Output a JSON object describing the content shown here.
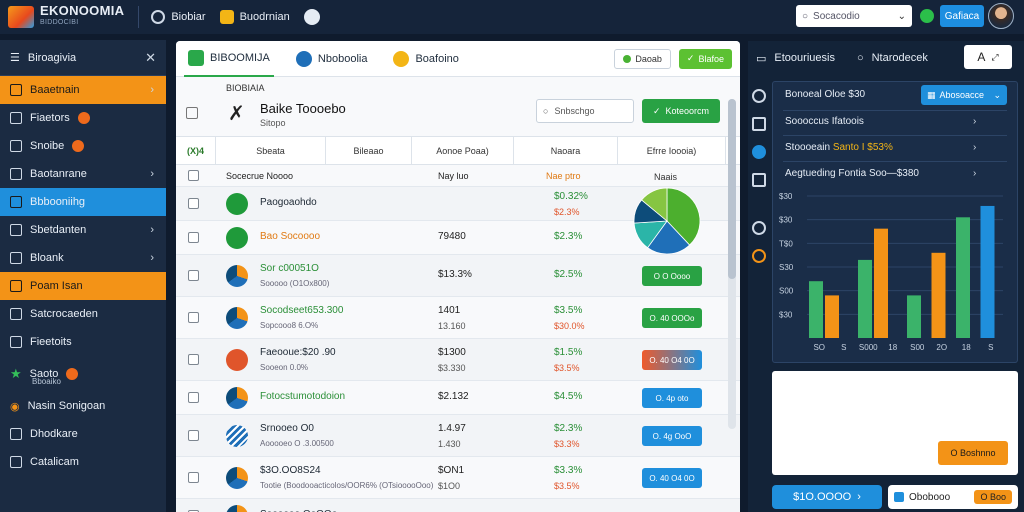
{
  "topbar": {
    "brand": "EKONOOMIA",
    "brand_sub": "BIDDOCIBI",
    "links": [
      {
        "label": "Biobiar",
        "icon": "clock-icon"
      },
      {
        "label": "Buodrnian",
        "icon": "folder-icon"
      }
    ],
    "search_placeholder": "Socacodio",
    "button_label": "Gafiaca"
  },
  "sidebar": {
    "title": "Biroagivia",
    "items": [
      {
        "label": "Baaetnain",
        "icon": "folder-icon",
        "state": "active-orange",
        "arrow": true
      },
      {
        "label": "Fiaetors",
        "icon": "calendar-icon",
        "badge": true
      },
      {
        "label": "Snoibe",
        "icon": "clipboard-icon",
        "badge": true
      },
      {
        "label": "Baotanrane",
        "icon": "document-icon",
        "arrow": true
      },
      {
        "label": "Bbbooniihg",
        "icon": "grid-icon",
        "state": "active-blue"
      },
      {
        "label": "Sbetdanten",
        "icon": "list-icon",
        "arrow": true
      },
      {
        "label": "Bloank",
        "icon": "rocket-icon",
        "arrow": true
      },
      {
        "label": "Poam Isan",
        "icon": "folder-icon",
        "state": "active-orange"
      },
      {
        "label": "Satcrocaeden",
        "icon": "square-icon"
      },
      {
        "label": "Fieetoits",
        "icon": "chart-icon"
      },
      {
        "label": "Saoto",
        "sub": "Bboaiko",
        "icon": "star-icon",
        "badge": true
      },
      {
        "label": "Nasin Sonigoan",
        "icon": "flame-icon"
      },
      {
        "label": "Dhodkare",
        "icon": "globe-icon"
      },
      {
        "label": "Catalicam",
        "icon": "gear-icon"
      }
    ]
  },
  "main": {
    "tabs": [
      {
        "label": "BIBOOMIJA"
      },
      {
        "label": "Nboboolia"
      },
      {
        "label": "Boafoino"
      }
    ],
    "btn_outline": "Daoab",
    "btn_green": "Blafoe",
    "info": {
      "label": "BIOBIAIA",
      "title": "Baike Toooebo",
      "sub": "Sitopo",
      "search_placeholder": "Snbschgo",
      "button": "Koteoorcm"
    },
    "headers": [
      "(X)4",
      "Sbeata",
      "Bileaao",
      "Aonoe Poaa)",
      "Naoara",
      "Efrre Ioooia)"
    ],
    "subheader": {
      "name": "Socecrue Noooo",
      "v1": "Nay luo",
      "v2": "Nae ptro",
      "pie": "Naais"
    },
    "rows": [
      {
        "name": "Paogoaohdo",
        "v1": "",
        "v2": "$0.32%",
        "v2b": "$2.3%"
      },
      {
        "name": "Bao Socoooo",
        "v1": "79480",
        "v2": "$2.3%"
      },
      {
        "name": "Sor c00051O",
        "sub": "Sooooo (O1Ox800)",
        "v1": "$13.3%",
        "v2": "$2.5%",
        "pill": "O O Oooo"
      },
      {
        "name": "Socodseet653.300",
        "sub": "Sopcooo8 6.O%",
        "v1": "1401",
        "v1b": "13.160",
        "v2": "$3.5%",
        "v2b": "$30.0%",
        "pill": "O. 40 OOOo"
      },
      {
        "name": "Faeooue:$20 .90",
        "sub": "Sooeon 0.0%",
        "v1": "$1300",
        "v1b": "$3.330",
        "v2": "$1.5%",
        "v2b": "$3.5%",
        "pill": "O. 40 O4 0O"
      },
      {
        "name": "Fotocstumotodoion",
        "v1": "$2.132",
        "v2": "$4.5%",
        "pill": "O. 4p oto"
      },
      {
        "name": "Srnooeo O0",
        "sub": "Aooooeo O .3.00500",
        "v1": "1.4.97",
        "v1b": "1.430",
        "v2": "$2.3%",
        "v2b": "$3.3%",
        "pill": "O. 4g OoO"
      },
      {
        "name": "$3O.OO8S24",
        "sub": "Tootie (Boodooacticolos/OOR6% (OTsiooooOoo)",
        "v1": "$ON1",
        "v1b": "$1O0",
        "v2": "$3.3%",
        "v2b": "$3.5%",
        "pill": "O. 40 O4 0O"
      },
      {
        "name": "Soooooo OoOOo",
        "v1": "",
        "v2": ""
      }
    ],
    "pie_slices": [
      {
        "value": 38,
        "color": "#4caf2e"
      },
      {
        "value": 22,
        "color": "#1f6fb8"
      },
      {
        "value": 14,
        "color": "#2bb5a8"
      },
      {
        "value": 12,
        "color": "#0d4c7a"
      },
      {
        "value": 14,
        "color": "#86c542"
      }
    ]
  },
  "right": {
    "tabs": [
      "Etoouriuesis",
      "Ntarodecek"
    ],
    "select_label": "Abosoacce",
    "lines": [
      {
        "text": "Bonoeal Oloe $30",
        "select": true
      },
      {
        "text": "Soooccus Ifatoois",
        "arrow": true
      },
      {
        "text": "Stoooeain",
        "hl": "Santo I $53%",
        "arrow": true
      },
      {
        "text": "Aegtueding Fontia Soo—$380",
        "arrow": true
      }
    ],
    "chart_data": {
      "type": "bar",
      "categories": [
        "SO",
        "S",
        "S000",
        "18",
        "S00",
        "2O",
        "18",
        "S"
      ],
      "y_ticks": [
        "$30",
        "$30",
        "T$0",
        "S30",
        "S00",
        "$30"
      ],
      "ylim": [
        0,
        10
      ],
      "series": [
        {
          "color": "#3bb36a",
          "values": [
            4,
            0,
            5.5,
            0,
            3,
            0,
            8.5,
            0
          ]
        },
        {
          "color": "#f39317",
          "values": [
            3,
            0,
            7.7,
            0,
            0,
            6,
            0,
            0
          ]
        },
        {
          "color": "#1f8fdc",
          "values": [
            0,
            0,
            0,
            0,
            0,
            0,
            0,
            9.3
          ]
        }
      ]
    },
    "panel_button": "O Boshnno",
    "bottom_button": "$1O.OOOO",
    "bottom_field": "Obobooo",
    "bottom_badge": "O Boo"
  },
  "colors": {
    "accent_orange": "#f39317",
    "accent_blue": "#1f8fdc",
    "accent_green": "#29a244"
  }
}
